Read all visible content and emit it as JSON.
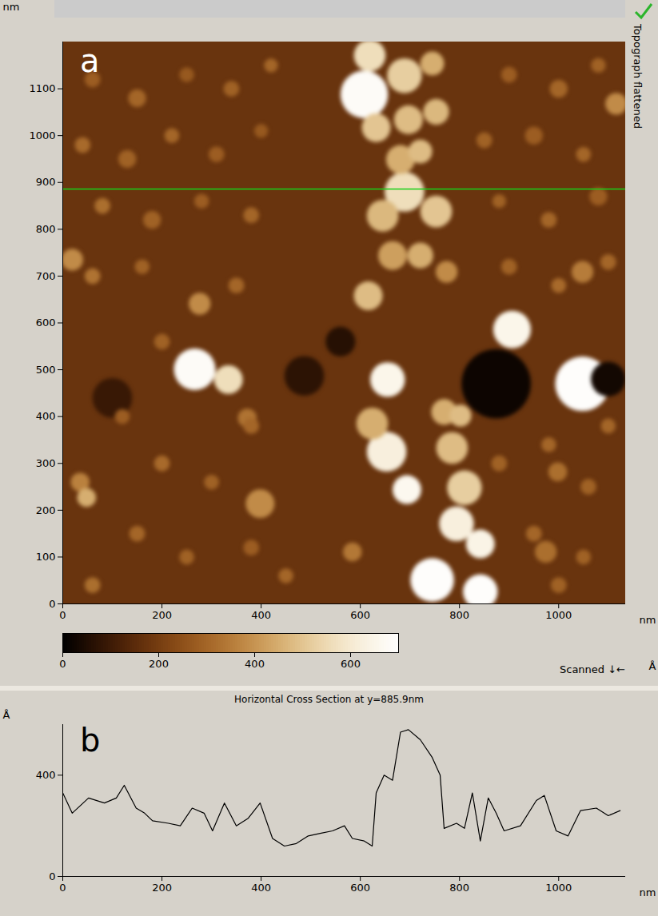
{
  "chart_data": [
    {
      "type": "image",
      "panel_label": "a",
      "side_text": "Topograph flattened",
      "scan_note": "Scanned ↓←",
      "x_label": "nm",
      "y_label": "nm",
      "xlim": [
        0,
        1135
      ],
      "ylim": [
        0,
        1200
      ],
      "xticks": [
        0,
        200,
        400,
        600,
        800,
        1000
      ],
      "yticks": [
        0,
        100,
        200,
        300,
        400,
        500,
        600,
        700,
        800,
        900,
        1000,
        1100
      ],
      "colors": [
        "#000000",
        "#4a1e06",
        "#8a4a14",
        "#b87a34",
        "#dcb878",
        "#f6ead0",
        "#ffffff"
      ],
      "colorbar_range": [
        0,
        700
      ],
      "colorbar_ticks": [
        0,
        200,
        400,
        600
      ],
      "colorbar_label": "Å",
      "cross_section_y": 885.9,
      "base_height": 175,
      "grains": [
        {
          "x": 874,
          "y": 470,
          "radius": 70,
          "height": 20
        },
        {
          "x": 1100,
          "y": 480,
          "radius": 35,
          "height": 30
        },
        {
          "x": 487,
          "y": 487,
          "radius": 40,
          "height": 70
        },
        {
          "x": 100,
          "y": 440,
          "radius": 40,
          "height": 90
        },
        {
          "x": 560,
          "y": 560,
          "radius": 30,
          "height": 60
        },
        {
          "x": 60,
          "y": 1120,
          "radius": 16,
          "height": 280
        },
        {
          "x": 150,
          "y": 1080,
          "radius": 18,
          "height": 300
        },
        {
          "x": 250,
          "y": 1130,
          "radius": 15,
          "height": 270
        },
        {
          "x": 340,
          "y": 1100,
          "radius": 16,
          "height": 290
        },
        {
          "x": 420,
          "y": 1150,
          "radius": 14,
          "height": 300
        },
        {
          "x": 900,
          "y": 1130,
          "radius": 16,
          "height": 280
        },
        {
          "x": 1000,
          "y": 1100,
          "radius": 18,
          "height": 300
        },
        {
          "x": 1080,
          "y": 1150,
          "radius": 15,
          "height": 290
        },
        {
          "x": 40,
          "y": 980,
          "radius": 16,
          "height": 310
        },
        {
          "x": 130,
          "y": 950,
          "radius": 18,
          "height": 290
        },
        {
          "x": 220,
          "y": 1000,
          "radius": 15,
          "height": 300
        },
        {
          "x": 310,
          "y": 960,
          "radius": 16,
          "height": 280
        },
        {
          "x": 400,
          "y": 1010,
          "radius": 14,
          "height": 270
        },
        {
          "x": 850,
          "y": 990,
          "radius": 16,
          "height": 290
        },
        {
          "x": 950,
          "y": 1000,
          "radius": 18,
          "height": 280
        },
        {
          "x": 1050,
          "y": 960,
          "radius": 15,
          "height": 300
        },
        {
          "x": 80,
          "y": 850,
          "radius": 16,
          "height": 320
        },
        {
          "x": 180,
          "y": 820,
          "radius": 18,
          "height": 290
        },
        {
          "x": 280,
          "y": 860,
          "radius": 15,
          "height": 280
        },
        {
          "x": 380,
          "y": 830,
          "radius": 16,
          "height": 300
        },
        {
          "x": 880,
          "y": 860,
          "radius": 14,
          "height": 290
        },
        {
          "x": 980,
          "y": 820,
          "radius": 16,
          "height": 300
        },
        {
          "x": 1080,
          "y": 870,
          "radius": 18,
          "height": 280
        },
        {
          "x": 60,
          "y": 700,
          "radius": 16,
          "height": 330
        },
        {
          "x": 160,
          "y": 720,
          "radius": 15,
          "height": 290
        },
        {
          "x": 350,
          "y": 680,
          "radius": 16,
          "height": 300
        },
        {
          "x": 900,
          "y": 720,
          "radius": 16,
          "height": 290
        },
        {
          "x": 1000,
          "y": 680,
          "radius": 15,
          "height": 310
        },
        {
          "x": 1100,
          "y": 730,
          "radius": 16,
          "height": 300
        },
        {
          "x": 200,
          "y": 560,
          "radius": 16,
          "height": 290
        },
        {
          "x": 120,
          "y": 400,
          "radius": 15,
          "height": 280
        },
        {
          "x": 380,
          "y": 380,
          "radius": 16,
          "height": 300
        },
        {
          "x": 200,
          "y": 300,
          "radius": 16,
          "height": 310
        },
        {
          "x": 300,
          "y": 260,
          "radius": 15,
          "height": 290
        },
        {
          "x": 880,
          "y": 300,
          "radius": 16,
          "height": 290
        },
        {
          "x": 980,
          "y": 340,
          "radius": 15,
          "height": 300
        },
        {
          "x": 1060,
          "y": 250,
          "radius": 16,
          "height": 290
        },
        {
          "x": 150,
          "y": 150,
          "radius": 16,
          "height": 300
        },
        {
          "x": 250,
          "y": 100,
          "radius": 15,
          "height": 290
        },
        {
          "x": 380,
          "y": 120,
          "radius": 16,
          "height": 280
        },
        {
          "x": 950,
          "y": 150,
          "radius": 16,
          "height": 300
        },
        {
          "x": 1050,
          "y": 100,
          "radius": 15,
          "height": 290
        },
        {
          "x": 60,
          "y": 40,
          "radius": 16,
          "height": 320
        },
        {
          "x": 450,
          "y": 60,
          "radius": 15,
          "height": 300
        },
        {
          "x": 1000,
          "y": 40,
          "radius": 16,
          "height": 290
        },
        {
          "x": 1100,
          "y": 380,
          "radius": 15,
          "height": 300
        },
        {
          "x": 372,
          "y": 397,
          "radius": 19,
          "height": 330
        },
        {
          "x": 1048,
          "y": 709,
          "radius": 22,
          "height": 350
        },
        {
          "x": 584,
          "y": 111,
          "radius": 19,
          "height": 340
        },
        {
          "x": 974,
          "y": 111,
          "radius": 22,
          "height": 320
        },
        {
          "x": 998,
          "y": 282,
          "radius": 19,
          "height": 320
        },
        {
          "x": 35,
          "y": 260,
          "radius": 19,
          "height": 360
        },
        {
          "x": 774,
          "y": 709,
          "radius": 22,
          "height": 380
        },
        {
          "x": 276,
          "y": 641,
          "radius": 22,
          "height": 380
        },
        {
          "x": 398,
          "y": 214,
          "radius": 29,
          "height": 380
        },
        {
          "x": 1116,
          "y": 1068,
          "radius": 22,
          "height": 380
        },
        {
          "x": 19,
          "y": 735,
          "radius": 22,
          "height": 380
        },
        {
          "x": 48,
          "y": 227,
          "radius": 19,
          "height": 450
        },
        {
          "x": 616,
          "y": 658,
          "radius": 29,
          "height": 480
        },
        {
          "x": 665,
          "y": 744,
          "radius": 29,
          "height": 420
        },
        {
          "x": 721,
          "y": 744,
          "radius": 26,
          "height": 450
        },
        {
          "x": 645,
          "y": 829,
          "radius": 32,
          "height": 470
        },
        {
          "x": 753,
          "y": 838,
          "radius": 32,
          "height": 500
        },
        {
          "x": 681,
          "y": 949,
          "radius": 29,
          "height": 450
        },
        {
          "x": 721,
          "y": 966,
          "radius": 24,
          "height": 480
        },
        {
          "x": 632,
          "y": 1017,
          "radius": 29,
          "height": 500
        },
        {
          "x": 697,
          "y": 1034,
          "radius": 29,
          "height": 480
        },
        {
          "x": 753,
          "y": 1051,
          "radius": 26,
          "height": 470
        },
        {
          "x": 745,
          "y": 1154,
          "radius": 24,
          "height": 450
        },
        {
          "x": 689,
          "y": 1128,
          "radius": 35,
          "height": 520
        },
        {
          "x": 769,
          "y": 410,
          "radius": 26,
          "height": 450
        },
        {
          "x": 802,
          "y": 402,
          "radius": 22,
          "height": 480
        },
        {
          "x": 624,
          "y": 385,
          "radius": 32,
          "height": 450
        },
        {
          "x": 785,
          "y": 333,
          "radius": 32,
          "height": 480
        },
        {
          "x": 810,
          "y": 248,
          "radius": 35,
          "height": 520
        },
        {
          "x": 334,
          "y": 479,
          "radius": 29,
          "height": 560
        },
        {
          "x": 689,
          "y": 880,
          "radius": 40,
          "height": 560
        },
        {
          "x": 619,
          "y": 1171,
          "radius": 32,
          "height": 560
        },
        {
          "x": 794,
          "y": 171,
          "radius": 35,
          "height": 620
        },
        {
          "x": 653,
          "y": 325,
          "radius": 40,
          "height": 620
        },
        {
          "x": 842,
          "y": 128,
          "radius": 29,
          "height": 640
        },
        {
          "x": 906,
          "y": 586,
          "radius": 38,
          "height": 650
        },
        {
          "x": 655,
          "y": 479,
          "radius": 35,
          "height": 650
        },
        {
          "x": 694,
          "y": 244,
          "radius": 29,
          "height": 660
        },
        {
          "x": 266,
          "y": 501,
          "radius": 42,
          "height": 680
        },
        {
          "x": 608,
          "y": 1088,
          "radius": 48,
          "height": 680
        },
        {
          "x": 745,
          "y": 51,
          "radius": 44,
          "height": 690
        },
        {
          "x": 842,
          "y": 26,
          "radius": 35,
          "height": 690
        },
        {
          "x": 1048,
          "y": 470,
          "radius": 55,
          "height": 690
        }
      ]
    },
    {
      "type": "line",
      "panel_label": "b",
      "title": "Horizontal Cross Section at y=885.9nm",
      "x_label": "nm",
      "y_label": "Å",
      "xlim": [
        0,
        1135
      ],
      "ylim": [
        0,
        600
      ],
      "xticks": [
        0,
        200,
        400,
        600,
        800,
        1000
      ],
      "yticks": [
        0,
        400
      ],
      "color": "#000000",
      "x": [
        0,
        19,
        52,
        84,
        108,
        124,
        148,
        165,
        181,
        213,
        237,
        261,
        285,
        302,
        326,
        350,
        374,
        398,
        423,
        447,
        471,
        495,
        519,
        544,
        568,
        584,
        608,
        624,
        632,
        648,
        665,
        681,
        697,
        721,
        745,
        761,
        769,
        794,
        810,
        826,
        842,
        858,
        874,
        890,
        923,
        955,
        971,
        995,
        1019,
        1044,
        1076,
        1100,
        1124
      ],
      "values": [
        330,
        250,
        310,
        290,
        310,
        360,
        270,
        250,
        220,
        210,
        200,
        270,
        250,
        180,
        290,
        200,
        230,
        290,
        150,
        120,
        130,
        160,
        170,
        180,
        200,
        150,
        140,
        120,
        330,
        400,
        380,
        570,
        580,
        540,
        470,
        400,
        190,
        210,
        190,
        330,
        140,
        310,
        250,
        180,
        200,
        300,
        320,
        180,
        160,
        260,
        270,
        240,
        260
      ]
    }
  ]
}
